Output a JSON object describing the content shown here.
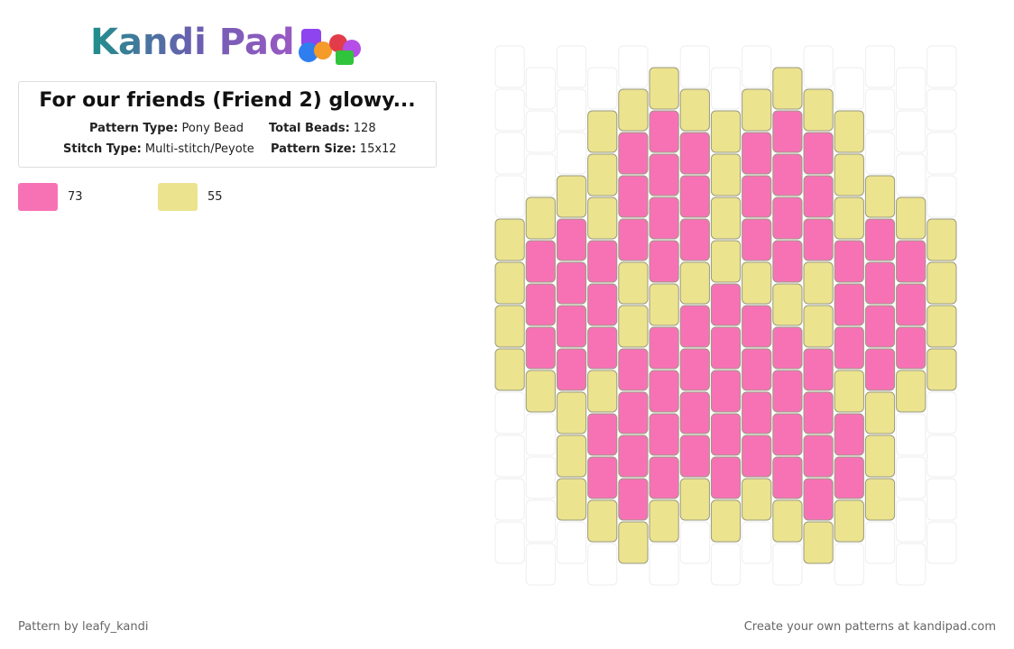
{
  "header": {
    "logo": "Kandi Pad",
    "title": "For our friends (Friend 2) glowy...",
    "fields": [
      {
        "label": "Pattern Type:",
        "value": "Pony Bead"
      },
      {
        "label": "Total Beads:",
        "value": "128"
      },
      {
        "label": "Stitch Type:",
        "value": "Multi-stitch/Peyote"
      },
      {
        "label": "Pattern Size:",
        "value": "15x12"
      }
    ]
  },
  "palette": [
    {
      "color": "#f772b5",
      "count": 73
    },
    {
      "color": "#ece38f",
      "count": 55
    }
  ],
  "beads": {
    "columns": [
      [
        null,
        null,
        null,
        null,
        1,
        1,
        1,
        1,
        null,
        null,
        null,
        null
      ],
      [
        null,
        null,
        null,
        1,
        0,
        0,
        0,
        1,
        null,
        null,
        null,
        null
      ],
      [
        null,
        null,
        null,
        1,
        0,
        0,
        0,
        0,
        1,
        1,
        1,
        null
      ],
      [
        null,
        1,
        1,
        1,
        0,
        0,
        0,
        1,
        0,
        0,
        1,
        null
      ],
      [
        null,
        1,
        0,
        0,
        0,
        1,
        1,
        0,
        0,
        0,
        0,
        1
      ],
      [
        1,
        0,
        0,
        0,
        0,
        1,
        0,
        0,
        0,
        0,
        1,
        null
      ],
      [
        null,
        1,
        0,
        0,
        0,
        1,
        0,
        0,
        0,
        0,
        1,
        null
      ],
      [
        null,
        1,
        1,
        1,
        1,
        0,
        0,
        0,
        0,
        0,
        1,
        null
      ],
      [
        null,
        1,
        0,
        0,
        0,
        1,
        0,
        0,
        0,
        0,
        1,
        null
      ],
      [
        1,
        0,
        0,
        0,
        0,
        1,
        0,
        0,
        0,
        0,
        1,
        null
      ],
      [
        null,
        1,
        0,
        0,
        0,
        1,
        1,
        0,
        0,
        0,
        0,
        1
      ],
      [
        null,
        1,
        1,
        1,
        0,
        0,
        0,
        1,
        0,
        0,
        1,
        null
      ],
      [
        null,
        null,
        null,
        1,
        0,
        0,
        0,
        0,
        1,
        1,
        1,
        null
      ],
      [
        null,
        null,
        null,
        1,
        0,
        0,
        0,
        1,
        null,
        null,
        null,
        null
      ],
      [
        null,
        null,
        null,
        null,
        1,
        1,
        1,
        1,
        null,
        null,
        null,
        null
      ]
    ]
  },
  "footer": {
    "left": "Pattern by leafy_kandi",
    "right": "Create your own patterns at kandipad.com"
  }
}
